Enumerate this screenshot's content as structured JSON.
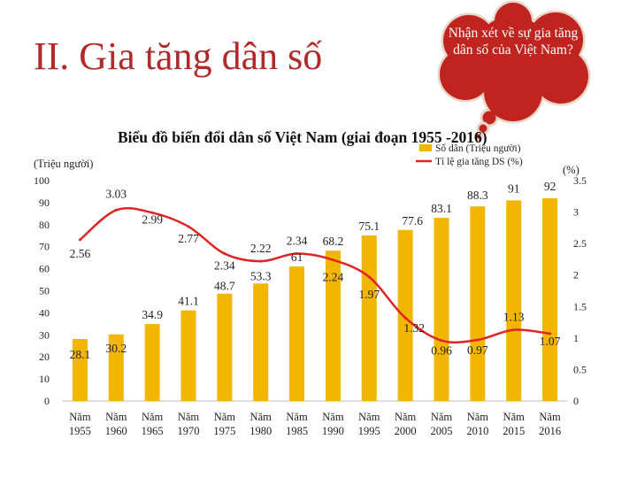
{
  "page": {
    "heading": "II. Gia tăng dân số",
    "bubble_text": "Nhận xét về sự gia tăng dân số của Việt Nam?"
  },
  "chart_data": {
    "type": "bar",
    "title": "Biểu đồ biến đổi dân số Việt Nam (giai đoạn 1955 -2016)",
    "categories": [
      [
        "Năm",
        "1955"
      ],
      [
        "Năm",
        "1960"
      ],
      [
        "Năm",
        "1965"
      ],
      [
        "Năm",
        "1970"
      ],
      [
        "Năm",
        "1975"
      ],
      [
        "Năm",
        "1980"
      ],
      [
        "Năm",
        "1985"
      ],
      [
        "Năm",
        "1990"
      ],
      [
        "Năm",
        "1995"
      ],
      [
        "Năm",
        "2000"
      ],
      [
        "Năm",
        "2005"
      ],
      [
        "Năm",
        "2010"
      ],
      [
        "Năm",
        "2015"
      ],
      [
        "Năm",
        "2016"
      ]
    ],
    "left_axis": {
      "label": "(Triệu người)",
      "ylim": [
        0,
        100
      ],
      "ticks": [
        "0",
        "10",
        "20",
        "30",
        "40",
        "50",
        "60",
        "70",
        "80",
        "90",
        "100"
      ]
    },
    "right_axis": {
      "label": "(%)",
      "ylim": [
        0,
        3.5
      ],
      "ticks": [
        "0",
        "0.5",
        "1",
        "1.5",
        "2",
        "2.5",
        "3",
        "3.5"
      ]
    },
    "series": [
      {
        "name": "Số dân (Triệu người)",
        "type": "bar",
        "axis": "left",
        "color": "#f2b600",
        "values": [
          28.1,
          30.2,
          34.9,
          41.1,
          48.7,
          53.3,
          61,
          68.2,
          75.1,
          77.6,
          83.1,
          88.3,
          91,
          92
        ],
        "labels": [
          "28.1",
          "30.2",
          "34.9",
          "41.1",
          "48.7",
          "53.3",
          "61",
          "68.2",
          "75.1",
          "77.6",
          "83.1",
          "88.3",
          "91",
          "92"
        ]
      },
      {
        "name": "Tỉ lệ gia tăng DS (%)",
        "type": "line",
        "axis": "right",
        "color": "#e02424",
        "values": [
          2.56,
          3.03,
          2.99,
          2.77,
          2.34,
          2.22,
          2.34,
          2.24,
          1.97,
          1.32,
          0.96,
          0.97,
          1.13,
          1.07
        ],
        "labels": [
          "2.56",
          "3.03",
          "2.99",
          "2.77",
          "2.34",
          "2.22",
          "2.34",
          "2.24",
          "1.97",
          "1.32",
          "0.96",
          "0.97",
          "1.13",
          "1.07"
        ]
      }
    ],
    "legend": "top-right",
    "grid": false
  }
}
